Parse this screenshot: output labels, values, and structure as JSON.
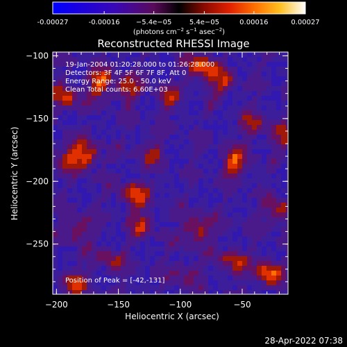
{
  "chart_data": {
    "type": "heatmap",
    "title": "Reconstructed RHESSI Image",
    "xlabel": "Heliocentric X (arcsec)",
    "ylabel": "Heliocentric Y (arcsec)",
    "xlim": [
      -203,
      -13
    ],
    "ylim": [
      -290,
      -97
    ],
    "xticks": [
      -200,
      -150,
      -100,
      -50
    ],
    "yticks": [
      -100,
      -150,
      -200,
      -250
    ],
    "colorbar": {
      "ticks": [
        "-0.00027",
        "-0.00016",
        "−5.4e−05",
        "5.4e−05",
        "0.00016",
        "0.00027"
      ],
      "tick_values": [
        -0.00027,
        -0.00016,
        -5.4e-05,
        5.4e-05,
        0.00016,
        0.00027
      ],
      "range": [
        -0.00027,
        0.00027
      ],
      "unit_base": "(photons cm",
      "unit_exp1": "−2",
      "unit_mid1": " s",
      "unit_exp2": "−1",
      "unit_mid2": " asec",
      "unit_exp3": "−2",
      "unit_end": ")",
      "colormap": "red-temperature"
    },
    "annotations": [
      "19-Jan-2004 01:20:28.000 to 01:26:28.000",
      "Detectors: 3F 4F 5F 6F 7F 8F, Att 0",
      "Energy Range: 25.0 - 50.0 keV",
      "Clean    Total counts: 6.60E+03"
    ],
    "peak_label": "Position of Peak = [-42,-131]",
    "peak": [
      -42,
      -131
    ],
    "grid": false
  },
  "footer": {
    "timestamp": "28-Apr-2022 07:38"
  }
}
